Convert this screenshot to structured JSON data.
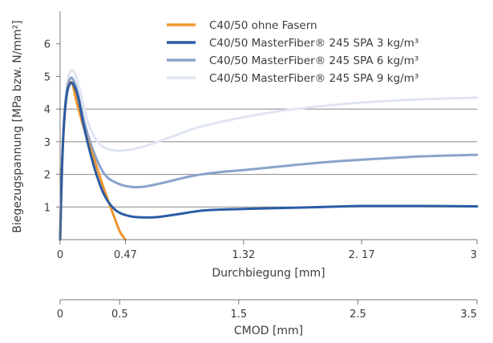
{
  "chart_data": {
    "type": "line",
    "ylabel": "Biegezugspannung [MPa bzw. N/mm²]",
    "xlabel": "Durchbiegung [mm]",
    "xlabel2": "CMOD [mm]",
    "xlim": [
      0,
      3
    ],
    "ylim": [
      0,
      7
    ],
    "y_ticks": [
      "1",
      "2",
      "3",
      "4",
      "5",
      "6"
    ],
    "x_ticks": [
      {
        "value": 0,
        "label": "0"
      },
      {
        "value": 0.47,
        "label": "0.47"
      },
      {
        "value": 1.32,
        "label": "1.32"
      },
      {
        "value": 2.17,
        "label": "2. 17"
      },
      {
        "value": 3,
        "label": "3"
      }
    ],
    "xlim2": [
      0,
      3.5
    ],
    "x2_ticks": [
      {
        "value": 0,
        "label": "0"
      },
      {
        "value": 0.5,
        "label": "0.5"
      },
      {
        "value": 1.5,
        "label": "1.5"
      },
      {
        "value": 2.5,
        "label": "2.5"
      },
      {
        "value": 3.5,
        "label": "3.5"
      }
    ],
    "grid": "horizontal at y = 1, 2, 3, 4",
    "legend_position": "top",
    "series": [
      {
        "name": "C40/50 ohne Fasern",
        "color": "#f0962e",
        "points": [
          [
            0,
            0
          ],
          [
            0.005,
            0.9
          ],
          [
            0.015,
            2.4
          ],
          [
            0.03,
            3.7
          ],
          [
            0.05,
            4.5
          ],
          [
            0.07,
            4.8
          ],
          [
            0.09,
            4.75
          ],
          [
            0.12,
            4.2
          ],
          [
            0.18,
            3.3
          ],
          [
            0.25,
            2.4
          ],
          [
            0.32,
            1.5
          ],
          [
            0.38,
            0.8
          ],
          [
            0.43,
            0.25
          ],
          [
            0.47,
            0
          ]
        ]
      },
      {
        "name": "C40/50 MasterFiber® 245 SPA 3 kg/m³",
        "color": "#2b5ca4",
        "points": [
          [
            0,
            0
          ],
          [
            0.005,
            0.9
          ],
          [
            0.015,
            2.4
          ],
          [
            0.03,
            3.7
          ],
          [
            0.05,
            4.5
          ],
          [
            0.075,
            4.8
          ],
          [
            0.1,
            4.72
          ],
          [
            0.13,
            4.35
          ],
          [
            0.18,
            3.3
          ],
          [
            0.25,
            2.15
          ],
          [
            0.32,
            1.35
          ],
          [
            0.4,
            0.9
          ],
          [
            0.5,
            0.72
          ],
          [
            0.6,
            0.68
          ],
          [
            0.7,
            0.69
          ],
          [
            0.85,
            0.78
          ],
          [
            1.05,
            0.9
          ],
          [
            1.32,
            0.94
          ],
          [
            1.6,
            0.97
          ],
          [
            1.9,
            1.0
          ],
          [
            2.17,
            1.03
          ],
          [
            2.6,
            1.03
          ],
          [
            3.0,
            1.02
          ]
        ]
      },
      {
        "name": "C40/50 MasterFiber® 245 SPA 6 kg/m³",
        "color": "#8ba3cb",
        "points": [
          [
            0,
            0
          ],
          [
            0.005,
            0.9
          ],
          [
            0.015,
            2.4
          ],
          [
            0.03,
            3.7
          ],
          [
            0.05,
            4.6
          ],
          [
            0.075,
            4.95
          ],
          [
            0.1,
            4.85
          ],
          [
            0.13,
            4.45
          ],
          [
            0.18,
            3.5
          ],
          [
            0.25,
            2.6
          ],
          [
            0.32,
            2.0
          ],
          [
            0.4,
            1.75
          ],
          [
            0.5,
            1.62
          ],
          [
            0.6,
            1.62
          ],
          [
            0.75,
            1.75
          ],
          [
            0.95,
            1.95
          ],
          [
            1.15,
            2.07
          ],
          [
            1.32,
            2.13
          ],
          [
            1.6,
            2.25
          ],
          [
            1.9,
            2.37
          ],
          [
            2.17,
            2.45
          ],
          [
            2.6,
            2.55
          ],
          [
            3.0,
            2.6
          ]
        ]
      },
      {
        "name": "C40/50 MasterFiber® 245 SPA 9 kg/m³",
        "color": "#dfe5f1",
        "points": [
          [
            0,
            0
          ],
          [
            0.005,
            0.9
          ],
          [
            0.015,
            2.4
          ],
          [
            0.03,
            3.8
          ],
          [
            0.05,
            4.8
          ],
          [
            0.08,
            5.2
          ],
          [
            0.11,
            5.05
          ],
          [
            0.15,
            4.45
          ],
          [
            0.2,
            3.6
          ],
          [
            0.27,
            3.0
          ],
          [
            0.35,
            2.77
          ],
          [
            0.45,
            2.73
          ],
          [
            0.6,
            2.85
          ],
          [
            0.8,
            3.15
          ],
          [
            1.0,
            3.45
          ],
          [
            1.32,
            3.75
          ],
          [
            1.6,
            3.95
          ],
          [
            1.9,
            4.1
          ],
          [
            2.17,
            4.2
          ],
          [
            2.6,
            4.3
          ],
          [
            3.0,
            4.35
          ]
        ]
      }
    ]
  }
}
